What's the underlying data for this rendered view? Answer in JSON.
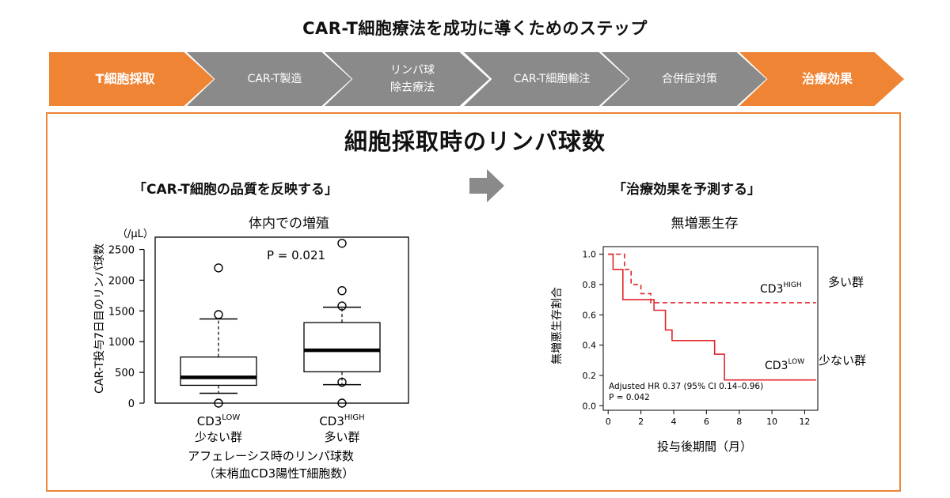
{
  "page_title": "CAR-T細胞療法を成功に導くためのステップ",
  "steps": [
    {
      "label": "T細胞採取",
      "highlight": true
    },
    {
      "label": "CAR-T製造",
      "highlight": false
    },
    {
      "label": "リンパ球\n除去療法",
      "highlight": false
    },
    {
      "label": "CAR-T細胞輸注",
      "highlight": false
    },
    {
      "label": "合併症対策",
      "highlight": false
    },
    {
      "label": "治療効果",
      "highlight": true
    }
  ],
  "colors": {
    "accent": "#ee8434",
    "step_gray": "#8a8a8a",
    "curve_red": "#e0262b"
  },
  "panel": {
    "title": "細胞採取時のリンパ球数",
    "left_quote": "「CAR-T細胞の品質を反映する」",
    "right_quote": "「治療効果を予測する」",
    "arrow_icon": "right-arrow-icon"
  },
  "chart_data": [
    {
      "type": "boxplot",
      "title": "体内での増殖",
      "unit": "（/μL）",
      "ylabel": "CAR-T投与7日目のリンパ球数",
      "xlabel_line1": "アフェレーシス時のリンパ球数",
      "xlabel_line2": "（末梢血CD3陽性T細胞数）",
      "ylim": [
        0,
        2700
      ],
      "yticks": [
        0,
        500,
        1000,
        1500,
        2000,
        2500
      ],
      "annotation": "P = 0.021",
      "groups": [
        {
          "label_main": "CD3",
          "label_sup": "LOW",
          "label_sub": "少ない群",
          "whisker_low": 160,
          "q1": 290,
          "median": 420,
          "q3": 750,
          "whisker_high": 1370,
          "outliers": [
            0,
            1440,
            2200
          ]
        },
        {
          "label_main": "CD3",
          "label_sup": "HIGH",
          "label_sub": "多い群",
          "whisker_low": 300,
          "q1": 510,
          "median": 860,
          "q3": 1310,
          "whisker_high": 1560,
          "outliers": [
            0,
            340,
            1580,
            1830,
            2600
          ]
        }
      ]
    },
    {
      "type": "line",
      "title": "無増悪生存",
      "ylabel": "無増悪生存割合",
      "xlabel": "投与後期間（月）",
      "xlim": [
        -0.3,
        12.8
      ],
      "ylim": [
        -0.03,
        1.05
      ],
      "xticks": [
        0,
        2,
        4,
        6,
        8,
        10,
        12
      ],
      "yticks": [
        0.0,
        0.2,
        0.4,
        0.6,
        0.8,
        1.0
      ],
      "annotation_line1": "Adjusted HR 0.37 (95% CI 0.14–0.96)",
      "annotation_line2": "P = 0.042",
      "series": [
        {
          "name_main": "CD3",
          "name_sup": "HIGH",
          "name_group": "多い群",
          "style": "dashed",
          "x": [
            0,
            1.0,
            1.0,
            1.4,
            1.4,
            2.0,
            2.0,
            2.6,
            2.6,
            12.7
          ],
          "y": [
            1.0,
            1.0,
            0.9,
            0.9,
            0.8,
            0.8,
            0.74,
            0.74,
            0.68,
            0.68
          ]
        },
        {
          "name_main": "CD3",
          "name_sup": "LOW",
          "name_group": "少ない群",
          "style": "solid",
          "x": [
            0,
            0.3,
            0.3,
            0.9,
            0.9,
            2.8,
            2.8,
            3.5,
            3.5,
            3.9,
            3.9,
            6.5,
            6.5,
            7.1,
            7.1,
            12.7
          ],
          "y": [
            1.0,
            1.0,
            0.9,
            0.9,
            0.7,
            0.7,
            0.63,
            0.63,
            0.5,
            0.5,
            0.43,
            0.43,
            0.34,
            0.34,
            0.17,
            0.17
          ]
        }
      ]
    }
  ]
}
